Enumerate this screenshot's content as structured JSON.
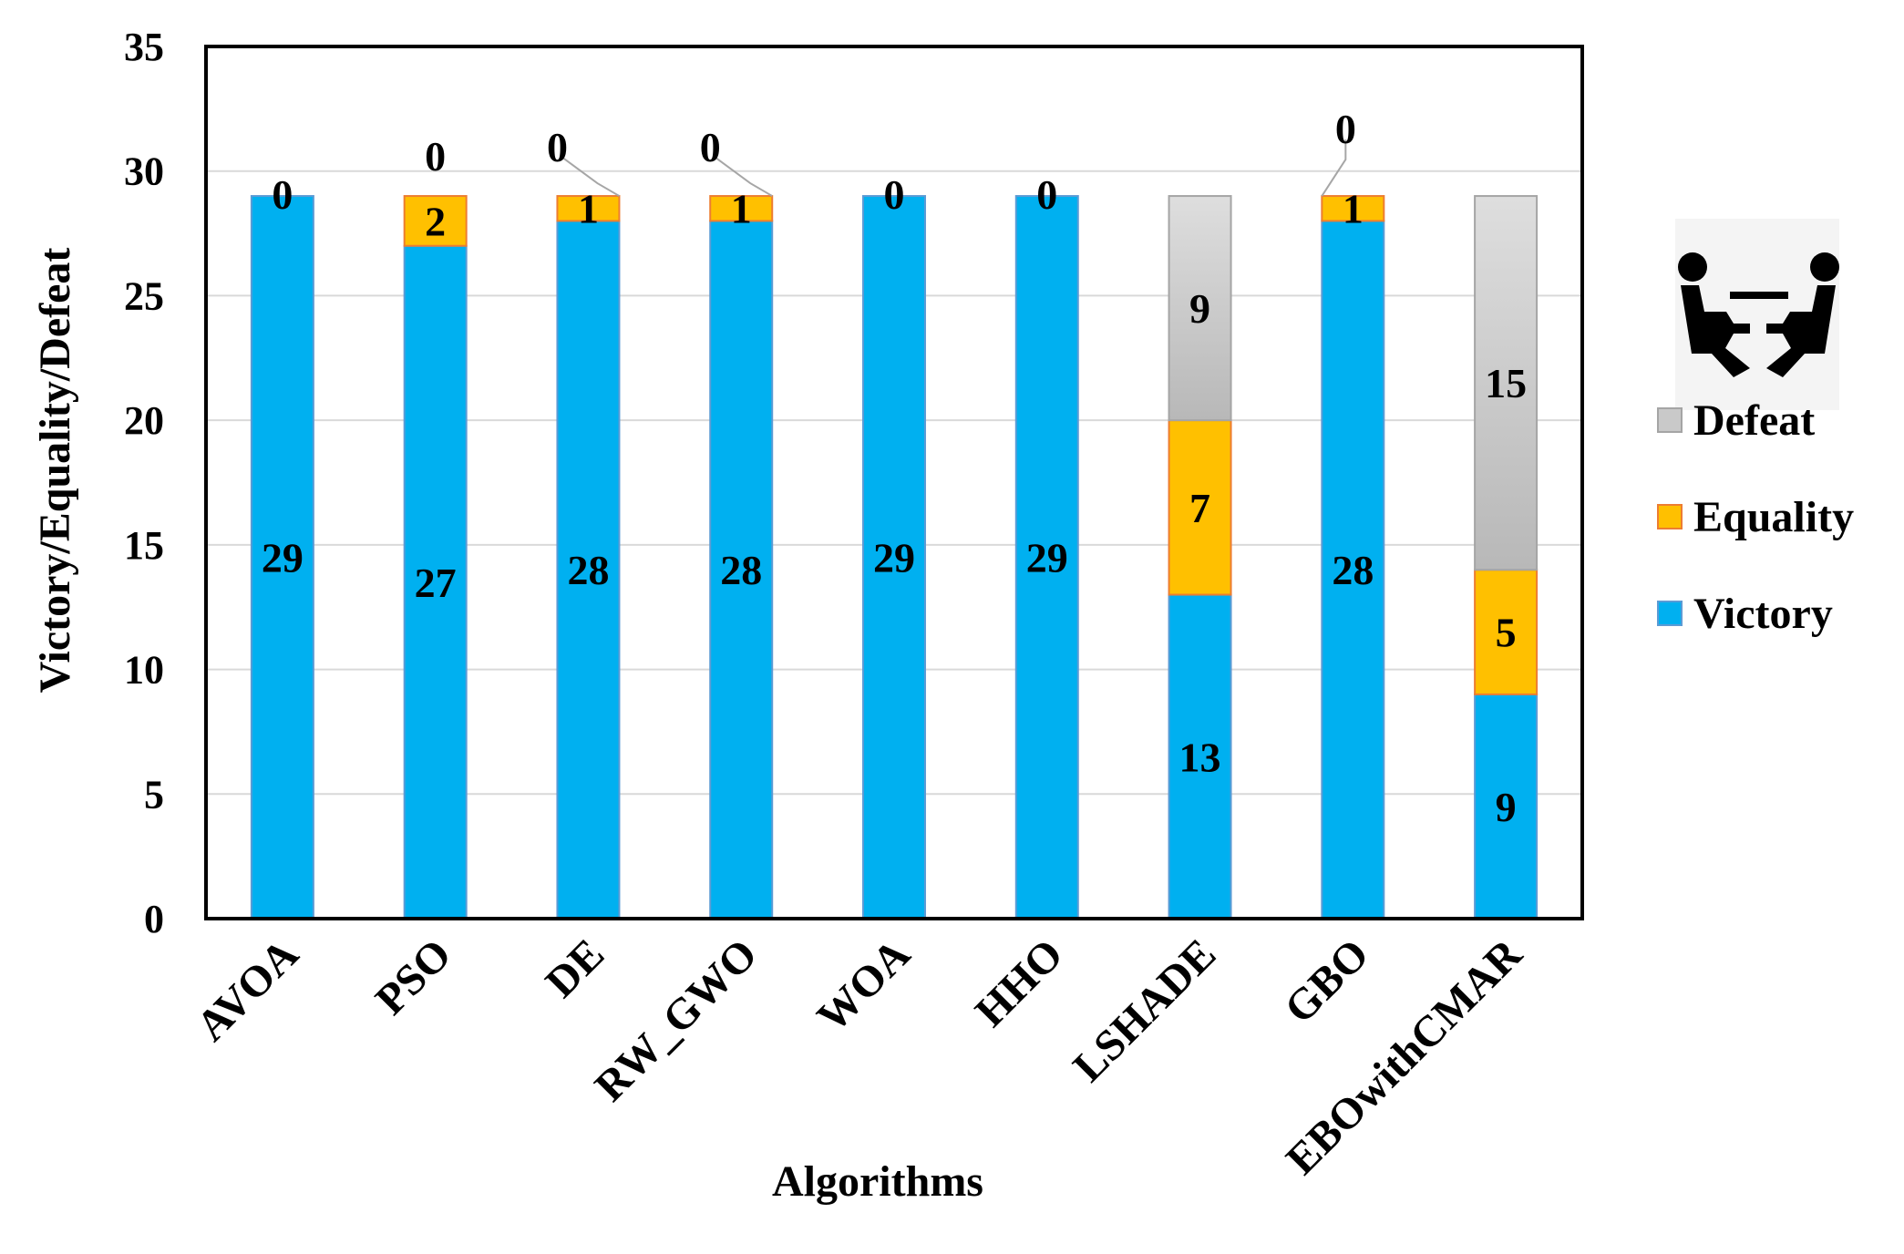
{
  "chart_data": {
    "type": "bar",
    "stacked": true,
    "title": "",
    "xlabel": "Algorithms",
    "ylabel": "Victory/Equality/Defeat",
    "ylim": [
      0,
      35
    ],
    "yticks": [
      0,
      5,
      10,
      15,
      20,
      25,
      30,
      35
    ],
    "grid": true,
    "legend_position": "right",
    "categories": [
      "AVOA",
      "PSO",
      "DE",
      "RW_GWO",
      "WOA",
      "HHO",
      "LSHADE",
      "GBO",
      "EBOwithCMAR"
    ],
    "series": [
      {
        "name": "Victory",
        "color": "#00b0f0",
        "values": [
          29,
          27,
          28,
          28,
          29,
          29,
          13,
          28,
          9
        ]
      },
      {
        "name": "Equality",
        "color": "#ffc000",
        "values": [
          0,
          2,
          1,
          1,
          0,
          0,
          7,
          1,
          5
        ]
      },
      {
        "name": "Defeat",
        "color": "#c9c9c9",
        "values": [
          0,
          0,
          0,
          0,
          0,
          0,
          9,
          0,
          15
        ]
      }
    ],
    "legend": [
      "Defeat",
      "Equality",
      "Victory"
    ],
    "legend_icon": "tug-of-war-icon"
  }
}
